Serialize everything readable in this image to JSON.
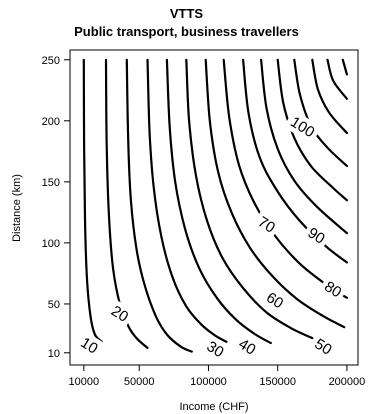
{
  "chart_data": {
    "type": "contour",
    "title": "VTTS",
    "subtitle": "Public transport, business travellers",
    "xlabel": "Income (CHF)",
    "ylabel": "Distance (km)",
    "xlim": [
      0,
      208000
    ],
    "ylim": [
      0,
      258
    ],
    "x_ticks": [
      10000,
      50000,
      100000,
      150000,
      200000
    ],
    "x_tick_labels": [
      "10000",
      "50000",
      "100000",
      "150000",
      "200000"
    ],
    "y_ticks": [
      10,
      50,
      100,
      150,
      200,
      250
    ],
    "y_tick_labels": [
      "10",
      "50",
      "100",
      "150",
      "200",
      "250"
    ],
    "contours": [
      {
        "level": "10",
        "label_at": [
          14000,
          16
        ],
        "points": [
          [
            10000,
            250
          ],
          [
            10200,
            180
          ],
          [
            10800,
            120
          ],
          [
            12300,
            70
          ],
          [
            14800,
            40
          ],
          [
            18000,
            25
          ],
          [
            23000,
            19
          ]
        ]
      },
      {
        "level": "",
        "points": [
          [
            26000,
            250
          ],
          [
            26500,
            180
          ],
          [
            28000,
            125
          ],
          [
            31000,
            80
          ],
          [
            36000,
            50
          ],
          [
            42000,
            32
          ],
          [
            48000,
            22
          ],
          [
            56000,
            14
          ]
        ]
      },
      {
        "level": "20",
        "label_at": [
          36000,
          42
        ],
        "points": [
          [
            41000,
            250
          ],
          [
            42000,
            185
          ],
          [
            44000,
            135
          ],
          [
            48000,
            95
          ],
          [
            54000,
            65
          ],
          [
            62000,
            40
          ],
          [
            70000,
            25
          ],
          [
            80000,
            15
          ],
          [
            88000,
            11
          ]
        ]
      },
      {
        "level": "",
        "points": [
          [
            56000,
            250
          ],
          [
            57500,
            190
          ],
          [
            60500,
            145
          ],
          [
            66000,
            105
          ],
          [
            74000,
            72
          ],
          [
            84000,
            48
          ],
          [
            95000,
            33
          ],
          [
            105000,
            24
          ],
          [
            113000,
            19
          ]
        ]
      },
      {
        "level": "30",
        "label_at": [
          105000,
          13
        ],
        "points": [
          [
            70000,
            250
          ],
          [
            72000,
            195
          ],
          [
            76000,
            150
          ],
          [
            83000,
            112
          ],
          [
            93000,
            80
          ],
          [
            106000,
            55
          ],
          [
            120000,
            37
          ],
          [
            134000,
            25
          ],
          [
            145000,
            18
          ]
        ]
      },
      {
        "level": "",
        "points": [
          [
            84000,
            250
          ],
          [
            86000,
            200
          ],
          [
            91000,
            155
          ],
          [
            99000,
            118
          ],
          [
            110000,
            88
          ],
          [
            125000,
            63
          ],
          [
            142000,
            43
          ],
          [
            160000,
            30
          ],
          [
            175000,
            22
          ]
        ]
      },
      {
        "level": "40",
        "label_at": [
          128000,
          15
        ],
        "points": [
          [
            98000,
            250
          ],
          [
            101000,
            200
          ],
          [
            107000,
            158
          ],
          [
            117000,
            124
          ],
          [
            130000,
            96
          ],
          [
            146000,
            73
          ],
          [
            164000,
            54
          ],
          [
            183000,
            40
          ],
          [
            198000,
            31
          ]
        ]
      },
      {
        "level": "",
        "points": [
          [
            111000,
            250
          ],
          [
            115000,
            203
          ],
          [
            122000,
            164
          ],
          [
            133000,
            133
          ],
          [
            148000,
            106
          ],
          [
            166000,
            83
          ],
          [
            186000,
            65
          ],
          [
            200000,
            55
          ]
        ]
      },
      {
        "level": "50",
        "label_at": [
          183000,
          15
        ],
        "points": [
          [
            125000,
            250
          ],
          [
            129000,
            206
          ],
          [
            137000,
            170
          ],
          [
            150000,
            142
          ],
          [
            166000,
            118
          ],
          [
            185000,
            97
          ],
          [
            200000,
            84
          ]
        ]
      },
      {
        "level": "60",
        "label_at": [
          148000,
          53
        ],
        "points": [
          [
            138000,
            250
          ],
          [
            142000,
            210
          ],
          [
            150000,
            177
          ],
          [
            162000,
            151
          ],
          [
            178000,
            130
          ],
          [
            200000,
            108
          ]
        ]
      },
      {
        "level": "70",
        "label_at": [
          142000,
          115
        ],
        "points": [
          [
            150000,
            250
          ],
          [
            154000,
            215
          ],
          [
            162000,
            186
          ],
          [
            174000,
            163
          ],
          [
            190000,
            145
          ],
          [
            200000,
            135
          ]
        ]
      },
      {
        "level": "80",
        "label_at": [
          190000,
          62
        ],
        "points": [
          [
            162000,
            250
          ],
          [
            166000,
            222
          ],
          [
            174000,
            196
          ],
          [
            186000,
            178
          ],
          [
            200000,
            163
          ]
        ]
      },
      {
        "level": "90",
        "label_at": [
          178000,
          106
        ],
        "points": [
          [
            175000,
            250
          ],
          [
            179000,
            226
          ],
          [
            187000,
            207
          ],
          [
            200000,
            190
          ]
        ]
      },
      {
        "level": "100",
        "label_at": [
          168000,
          195
        ],
        "points": [
          [
            186000,
            250
          ],
          [
            190000,
            233
          ],
          [
            200000,
            218
          ]
        ]
      },
      {
        "level": "",
        "points": [
          [
            197000,
            250
          ],
          [
            200000,
            238
          ]
        ]
      }
    ]
  }
}
